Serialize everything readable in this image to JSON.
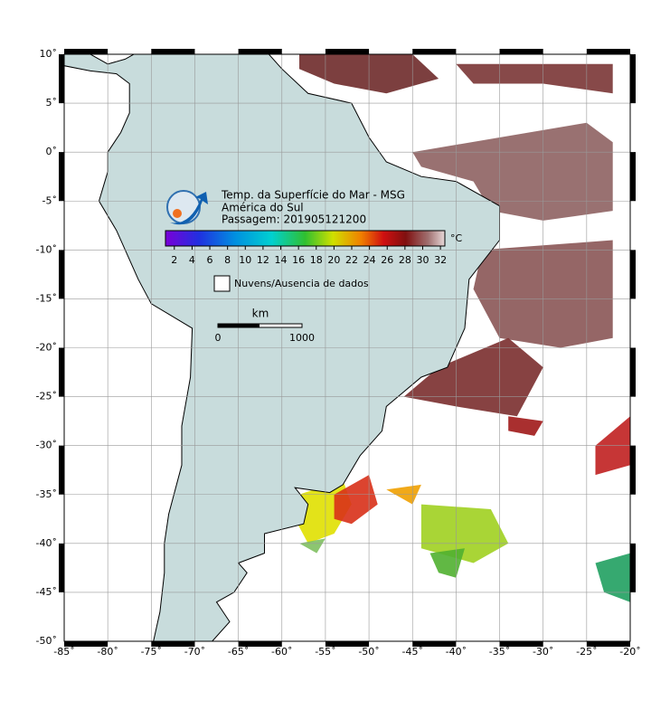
{
  "map": {
    "title": "Temp. da Superfície do Mar - MSG",
    "region": "América do Sul",
    "pass": "Passagem: 201905121200",
    "lon_ticks": [
      {
        "value": -85,
        "label": "-85˚"
      },
      {
        "value": -80,
        "label": "-80˚"
      },
      {
        "value": -75,
        "label": "-75˚"
      },
      {
        "value": -70,
        "label": "-70˚"
      },
      {
        "value": -65,
        "label": "-65˚"
      },
      {
        "value": -60,
        "label": "-60˚"
      },
      {
        "value": -55,
        "label": "-55˚"
      },
      {
        "value": -50,
        "label": "-50˚"
      },
      {
        "value": -45,
        "label": "-45˚"
      },
      {
        "value": -40,
        "label": "-40˚"
      },
      {
        "value": -35,
        "label": "-35˚"
      },
      {
        "value": -30,
        "label": "-30˚"
      },
      {
        "value": -25,
        "label": "-25˚"
      },
      {
        "value": -20,
        "label": "-20˚"
      }
    ],
    "lat_ticks": [
      {
        "value": 10,
        "label": "10˚"
      },
      {
        "value": 5,
        "label": "5˚"
      },
      {
        "value": 0,
        "label": "0˚"
      },
      {
        "value": -5,
        "label": "-5˚"
      },
      {
        "value": -10,
        "label": "-10˚"
      },
      {
        "value": -15,
        "label": "-15˚"
      },
      {
        "value": -20,
        "label": "-20˚"
      },
      {
        "value": -25,
        "label": "-25˚"
      },
      {
        "value": -30,
        "label": "-30˚"
      },
      {
        "value": -35,
        "label": "-35˚"
      },
      {
        "value": -40,
        "label": "-40˚"
      },
      {
        "value": -45,
        "label": "-45˚"
      },
      {
        "value": -50,
        "label": "-50˚"
      }
    ],
    "lon_range": [
      -85,
      -20
    ],
    "lat_range": [
      10,
      -50
    ],
    "colorbar": {
      "range": [
        1,
        32.5
      ],
      "ticks": [
        2,
        4,
        6,
        8,
        10,
        12,
        14,
        16,
        18,
        20,
        22,
        24,
        26,
        28,
        30,
        32
      ],
      "unit": "°C"
    },
    "legend": "Nuvens/Ausencia de dados",
    "scale": {
      "unit": "km",
      "start": "0",
      "end": "1000"
    }
  }
}
